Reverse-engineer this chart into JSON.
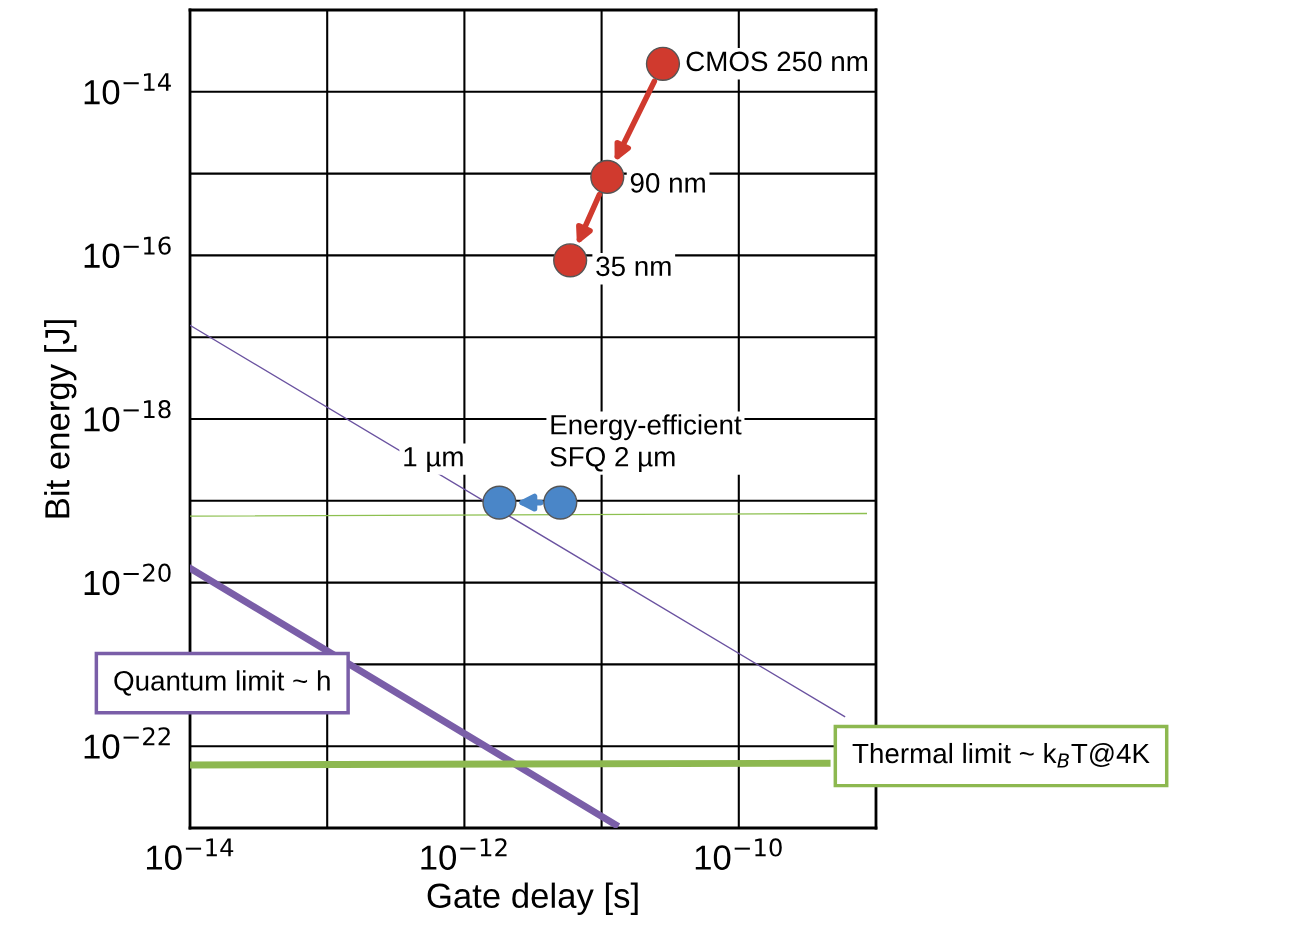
{
  "chart_data": {
    "type": "scatter",
    "xlabel": "Gate delay [s]",
    "ylabel": "Bit energy [J]",
    "log": "xy",
    "grid": true,
    "legend": false,
    "marker": "circle",
    "xlim": [
      1e-14,
      1e-09
    ],
    "ylim": [
      1e-23,
      1e-13
    ],
    "xticks": [
      {
        "value": 1e-14,
        "label": "10$^{−14}$"
      },
      {
        "value": 1e-13,
        "label": null
      },
      {
        "value": 1e-12,
        "label": "10$^{−12}$"
      },
      {
        "value": 1e-11,
        "label": null
      },
      {
        "value": 1e-10,
        "label": "10$^{−10}$"
      },
      {
        "value": 1e-09,
        "label": null
      }
    ],
    "yticks": [
      {
        "value": 1e-23,
        "label": null
      },
      {
        "value": 1e-22,
        "label": "10$^{−22}$"
      },
      {
        "value": 1e-21,
        "label": null
      },
      {
        "value": 1e-20,
        "label": "10$^{−20}$"
      },
      {
        "value": 1e-19,
        "label": null
      },
      {
        "value": 1e-18,
        "label": "10$^{−18}$"
      },
      {
        "value": 1e-17,
        "label": null
      },
      {
        "value": 1e-16,
        "label": "10$^{−16}$"
      },
      {
        "value": 1e-15,
        "label": null
      },
      {
        "value": 1e-14,
        "label": "10$^{−14}$"
      },
      {
        "value": 1e-13,
        "label": null
      }
    ],
    "series": [
      {
        "type": "line",
        "marker": "none",
        "color": "#6a52a0",
        "x": [
          1e-14,
          5.9e-10
        ],
        "values": [
          1.4e-17,
          2.3e-22
        ]
      },
      {
        "type": "line",
        "marker": "none",
        "color": "#8dc050",
        "x": [
          1e-14,
          8.5e-10
        ],
        "values": [
          6.5e-20,
          7e-20
        ]
      },
      {
        "type": "line",
        "marker": "none",
        "name": "Quantum limit ~ h",
        "color": "#7a5ea8",
        "x": [
          1e-14,
          1.26e-11
        ],
        "values": [
          1.5e-20,
          1.1e-23
        ]
      },
      {
        "type": "line",
        "marker": "none",
        "name": "Thermal limit ~ k$_{B}$T@4K",
        "color": "#8db850",
        "x": [
          1e-14,
          4.4e-10
        ],
        "values": [
          5.9e-23,
          6.2e-23
        ]
      },
      {
        "color": "#d03a2e",
        "x": [
          2.8e-11,
          1.1e-11,
          5.9e-12
        ],
        "values": [
          2.2e-14,
          9.1e-16,
          8.7e-17
        ]
      },
      {
        "color": "#4a86c8",
        "x": [
          5e-12,
          1.8e-12
        ],
        "values": [
          9.5e-20,
          9.5e-20
        ]
      }
    ],
    "annotations": [
      {
        "text": "CMOS 250 nm",
        "x": 2.8e-11,
        "y": 2.2e-14
      },
      {
        "text": "90 nm",
        "x": 1.1e-11,
        "y": 9.1e-16
      },
      {
        "text": "35 nm",
        "x": 5.9e-12,
        "y": 8.7e-17
      },
      {
        "text": "Energy-efficient\nSFQ 2 µm",
        "x": 5e-12,
        "y": 9.5e-20
      },
      {
        "text": "1 µm",
        "x": 1.8e-12,
        "y": 9.5e-20
      }
    ]
  }
}
